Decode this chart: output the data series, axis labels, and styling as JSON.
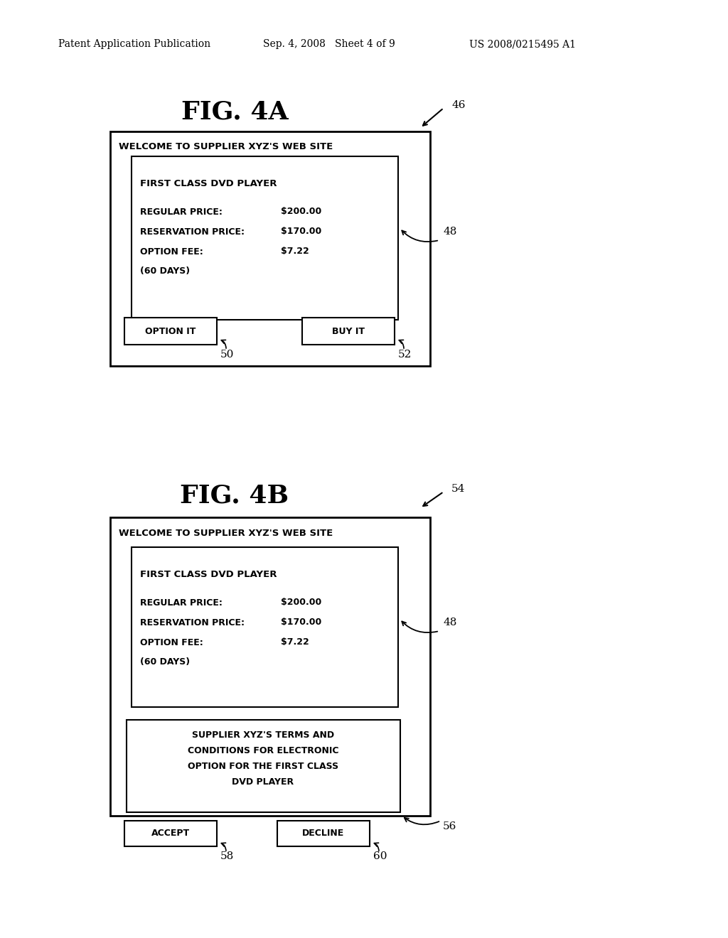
{
  "bg_color": "#ffffff",
  "header_left": "Patent Application Publication",
  "header_mid": "Sep. 4, 2008   Sheet 4 of 9",
  "header_right": "US 2008/0215495 A1",
  "fig4a_title": "FIG. 4A",
  "fig4a_ref": "46",
  "fig4b_title": "FIG. 4B",
  "fig4b_ref": "54",
  "welcome": "WELCOME TO SUPPLIER XYZ'S WEB SITE",
  "product": "FIRST CLASS DVD PLAYER",
  "regular": "REGULAR PRICE:",
  "regular_val": "$200.00",
  "reservation": "RESERVATION PRICE:",
  "reservation_val": "$170.00",
  "option_fee": "OPTION FEE:",
  "option_fee_val": "$7.22",
  "days": "(60 DAYS)",
  "ref48": "48",
  "btn_option": "OPTION IT",
  "btn_buy": "BUY IT",
  "ref50": "50",
  "ref52": "52",
  "terms_line1": "SUPPLIER XYZ'S TERMS AND",
  "terms_line2": "CONDITIONS FOR ELECTRONIC",
  "terms_line3": "OPTION FOR THE FIRST CLASS",
  "terms_line4": "DVD PLAYER",
  "btn_accept": "ACCEPT",
  "btn_decline": "DECLINE",
  "ref56": "56",
  "ref58": "58",
  "ref60": "60"
}
